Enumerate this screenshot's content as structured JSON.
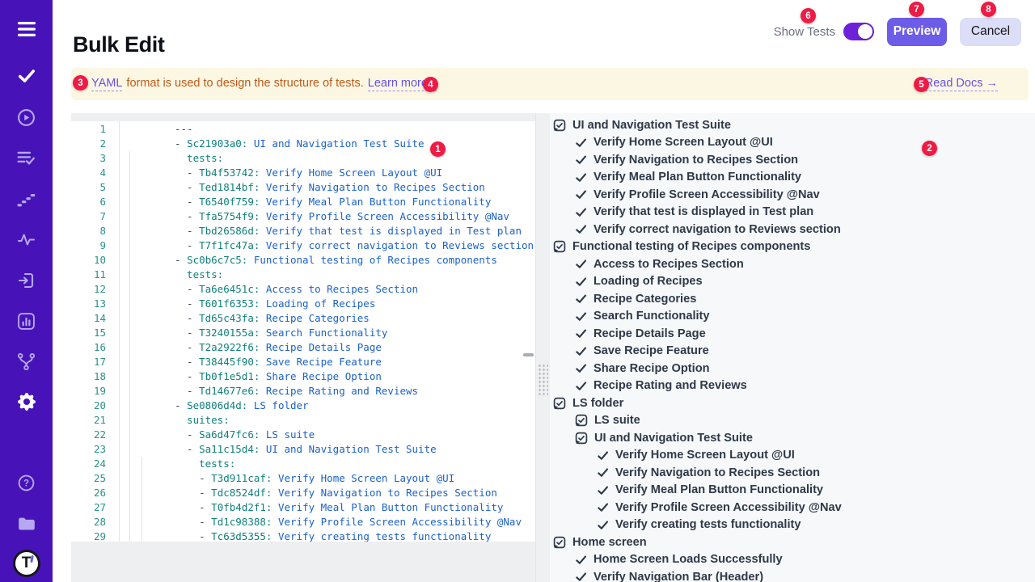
{
  "header": {
    "title": "Bulk Edit",
    "show_tests": "Show Tests",
    "preview": "Preview",
    "cancel": "Cancel",
    "toggle_state": "on"
  },
  "banner": {
    "yaml": "YAML",
    "message": "format is used to design the structure of tests.",
    "learn_more": "Learn more ↓",
    "read_docs": "Read Docs →"
  },
  "badges": {
    "b1": "1",
    "b2": "2",
    "b3": "3",
    "b4": "4",
    "b5": "5",
    "b6": "6",
    "b7": "7",
    "b8": "8"
  },
  "sidebar": {
    "logo_text": "T",
    "icons": [
      "menu-icon",
      "check-icon",
      "play-circle-icon",
      "list-check-icon",
      "steps-icon",
      "pulse-icon",
      "sign-in-icon",
      "bar-chart-icon",
      "branch-icon",
      "gear-icon",
      "help-icon",
      "folder-icon",
      "logo"
    ]
  },
  "colors": {
    "sidebar_bg": "#4713b8",
    "accent": "#6c5ce7",
    "toggle": "#6d22d9",
    "badge_red": "#ee1b44",
    "banner_bg": "#fcf7e2",
    "banner_text": "#c05a1a",
    "link": "#6550ee",
    "code_key": "#0e807a",
    "code_value": "#1b61c9",
    "tree_text": "#2e3949"
  },
  "editor": {
    "lines": [
      {
        "n": 1,
        "i": 0,
        "m": "---"
      },
      {
        "n": 2,
        "i": 0,
        "d": true,
        "k": "Sc21903a0",
        "v": "UI and Navigation Test Suite"
      },
      {
        "n": 3,
        "i": 2,
        "k": "tests"
      },
      {
        "n": 4,
        "i": 2,
        "d": true,
        "k": "Tb4f53742",
        "v": "Verify Home Screen Layout @UI"
      },
      {
        "n": 5,
        "i": 2,
        "d": true,
        "k": "Ted1814bf",
        "v": "Verify Navigation to Recipes Section"
      },
      {
        "n": 6,
        "i": 2,
        "d": true,
        "k": "T6540f759",
        "v": "Verify Meal Plan Button Functionality"
      },
      {
        "n": 7,
        "i": 2,
        "d": true,
        "k": "Tfa5754f9",
        "v": "Verify Profile Screen Accessibility @Nav"
      },
      {
        "n": 8,
        "i": 2,
        "d": true,
        "k": "Tbd26586d",
        "v": "Verify that test is displayed in Test plan"
      },
      {
        "n": 9,
        "i": 2,
        "d": true,
        "k": "T7f1fc47a",
        "v": "Verify correct navigation to Reviews section"
      },
      {
        "n": 10,
        "i": 0,
        "d": true,
        "k": "Sc0b6c7c5",
        "v": "Functional testing of Recipes components"
      },
      {
        "n": 11,
        "i": 2,
        "k": "tests"
      },
      {
        "n": 12,
        "i": 2,
        "d": true,
        "k": "Ta6e6451c",
        "v": "Access to Recipes Section"
      },
      {
        "n": 13,
        "i": 2,
        "d": true,
        "k": "T601f6353",
        "v": "Loading of Recipes"
      },
      {
        "n": 14,
        "i": 2,
        "d": true,
        "k": "Td65c43fa",
        "v": "Recipe Categories"
      },
      {
        "n": 15,
        "i": 2,
        "d": true,
        "k": "T3240155a",
        "v": "Search Functionality"
      },
      {
        "n": 16,
        "i": 2,
        "d": true,
        "k": "T2a2922f6",
        "v": "Recipe Details Page"
      },
      {
        "n": 17,
        "i": 2,
        "d": true,
        "k": "T38445f90",
        "v": "Save Recipe Feature"
      },
      {
        "n": 18,
        "i": 2,
        "d": true,
        "k": "Tb0f1e5d1",
        "v": "Share Recipe Option"
      },
      {
        "n": 19,
        "i": 2,
        "d": true,
        "k": "Td14677e6",
        "v": "Recipe Rating and Reviews"
      },
      {
        "n": 20,
        "i": 0,
        "d": true,
        "k": "Se0806d4d",
        "v": "LS folder"
      },
      {
        "n": 21,
        "i": 2,
        "k": "suites"
      },
      {
        "n": 22,
        "i": 2,
        "d": true,
        "k": "Sa6d47fc6",
        "v": "LS suite"
      },
      {
        "n": 23,
        "i": 2,
        "d": true,
        "k": "Sa11c15d4",
        "v": "UI and Navigation Test Suite"
      },
      {
        "n": 24,
        "i": 4,
        "k": "tests"
      },
      {
        "n": 25,
        "i": 4,
        "d": true,
        "k": "T3d911caf",
        "v": "Verify Home Screen Layout @UI"
      },
      {
        "n": 26,
        "i": 4,
        "d": true,
        "k": "Tdc8524df",
        "v": "Verify Navigation to Recipes Section"
      },
      {
        "n": 27,
        "i": 4,
        "d": true,
        "k": "T0fb4d2f1",
        "v": "Verify Meal Plan Button Functionality"
      },
      {
        "n": 28,
        "i": 4,
        "d": true,
        "k": "Td1c98388",
        "v": "Verify Profile Screen Accessibility @Nav"
      },
      {
        "n": 29,
        "i": 4,
        "d": true,
        "k": "Tc63d5355",
        "v": "Verify creating tests functionality"
      }
    ]
  },
  "tree": {
    "items": [
      {
        "t": "suite",
        "l": 0,
        "label": "UI and Navigation Test Suite"
      },
      {
        "t": "test",
        "l": 1,
        "label": "Verify Home Screen Layout @UI"
      },
      {
        "t": "test",
        "l": 1,
        "label": "Verify Navigation to Recipes Section"
      },
      {
        "t": "test",
        "l": 1,
        "label": "Verify Meal Plan Button Functionality"
      },
      {
        "t": "test",
        "l": 1,
        "label": "Verify Profile Screen Accessibility @Nav"
      },
      {
        "t": "test",
        "l": 1,
        "label": "Verify that test is displayed in Test plan"
      },
      {
        "t": "test",
        "l": 1,
        "label": "Verify correct navigation to Reviews section"
      },
      {
        "t": "suite",
        "l": 0,
        "label": "Functional testing of Recipes components"
      },
      {
        "t": "test",
        "l": 1,
        "label": "Access to Recipes Section"
      },
      {
        "t": "test",
        "l": 1,
        "label": "Loading of Recipes"
      },
      {
        "t": "test",
        "l": 1,
        "label": "Recipe Categories"
      },
      {
        "t": "test",
        "l": 1,
        "label": "Search Functionality"
      },
      {
        "t": "test",
        "l": 1,
        "label": "Recipe Details Page"
      },
      {
        "t": "test",
        "l": 1,
        "label": "Save Recipe Feature"
      },
      {
        "t": "test",
        "l": 1,
        "label": "Share Recipe Option"
      },
      {
        "t": "test",
        "l": 1,
        "label": "Recipe Rating and Reviews"
      },
      {
        "t": "suite",
        "l": 0,
        "label": "LS folder"
      },
      {
        "t": "suite",
        "l": 1,
        "label": "LS suite"
      },
      {
        "t": "suite",
        "l": 1,
        "label": "UI and Navigation Test Suite"
      },
      {
        "t": "test",
        "l": 2,
        "label": "Verify Home Screen Layout @UI"
      },
      {
        "t": "test",
        "l": 2,
        "label": "Verify Navigation to Recipes Section"
      },
      {
        "t": "test",
        "l": 2,
        "label": "Verify Meal Plan Button Functionality"
      },
      {
        "t": "test",
        "l": 2,
        "label": "Verify Profile Screen Accessibility @Nav"
      },
      {
        "t": "test",
        "l": 2,
        "label": "Verify creating tests functionality"
      },
      {
        "t": "suite",
        "l": 0,
        "label": "Home screen"
      },
      {
        "t": "test",
        "l": 1,
        "label": "Home Screen Loads Successfully"
      },
      {
        "t": "test",
        "l": 1,
        "label": "Verify Navigation Bar (Header)"
      }
    ]
  }
}
